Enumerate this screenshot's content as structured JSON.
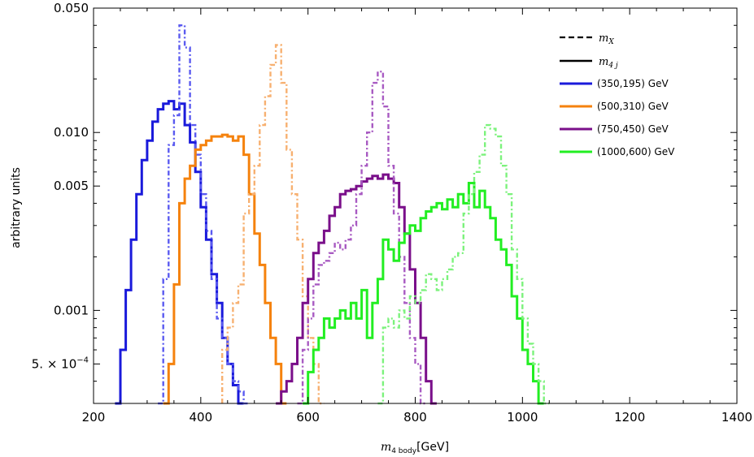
{
  "chart_data": {
    "type": "line",
    "subtype": "histogram-step",
    "xlabel_main": "m",
    "xlabel_sub": "4 body",
    "xlabel_unit": "[GeV]",
    "ylabel": "arbitrary units",
    "xlim": [
      200,
      1400
    ],
    "ylim": [
      0.0003,
      0.05
    ],
    "yscale": "log",
    "x_ticks": [
      200,
      400,
      600,
      800,
      1000,
      1200,
      1400
    ],
    "x_tick_labels": [
      "200",
      "400",
      "600",
      "800",
      "1000",
      "1200",
      "1400"
    ],
    "y_ticks": [
      0.0005,
      0.001,
      0.005,
      0.01,
      0.05
    ],
    "y_tick_labels": [
      "5. × 10",
      "0.001",
      "0.005",
      "0.010",
      "0.050"
    ],
    "y_tick_exp": "−4",
    "grid": false,
    "legend_position": "top-right",
    "legend": {
      "style_entries": [
        {
          "symbol": "m",
          "sub": "X",
          "style": "dashed"
        },
        {
          "symbol": "m",
          "sub": "4 j",
          "style": "solid"
        }
      ],
      "color_entries": [
        {
          "label": "(350,195) GeV",
          "color": "#1a1adb"
        },
        {
          "label": "(500,310) GeV",
          "color": "#f5820d"
        },
        {
          "label": "(750,450) GeV",
          "color": "#7a0f8a"
        },
        {
          "label": "(1000,600) GeV",
          "color": "#22ee22"
        }
      ]
    },
    "bin_width": 10,
    "series": [
      {
        "mass": "(350,195) GeV",
        "kind": "solid",
        "color": "#1a1adb",
        "x_start": 240,
        "values": [
          0.0003,
          0.0006,
          0.0013,
          0.0025,
          0.0045,
          0.007,
          0.009,
          0.0115,
          0.0135,
          0.0145,
          0.015,
          0.0135,
          0.0145,
          0.011,
          0.0088,
          0.006,
          0.0038,
          0.0025,
          0.0016,
          0.0011,
          0.0007,
          0.0005,
          0.00038,
          0.0003
        ]
      },
      {
        "mass": "(350,195) GeV",
        "kind": "dashed",
        "color": "#5a5af0",
        "x_start": 320,
        "values": [
          0.0003,
          0.0015,
          0.0085,
          0.0125,
          0.04,
          0.03,
          0.011,
          0.0075,
          0.0045,
          0.0028,
          0.0015,
          0.0009,
          0.0007,
          0.0005,
          0.0004,
          0.00035,
          0.0003
        ]
      },
      {
        "mass": "(500,310) GeV",
        "kind": "solid",
        "color": "#f5820d",
        "x_start": 330,
        "values": [
          0.0003,
          0.0005,
          0.0014,
          0.004,
          0.0055,
          0.0065,
          0.008,
          0.0085,
          0.009,
          0.0095,
          0.0095,
          0.0097,
          0.0095,
          0.009,
          0.0095,
          0.0075,
          0.0045,
          0.0027,
          0.0018,
          0.0011,
          0.0007,
          0.0005,
          0.0003
        ]
      },
      {
        "mass": "(500,310) GeV",
        "kind": "dashed",
        "color": "#f7b070",
        "x_start": 440,
        "values": [
          0.0006,
          0.0008,
          0.0011,
          0.0014,
          0.0035,
          0.0045,
          0.0065,
          0.011,
          0.016,
          0.024,
          0.031,
          0.019,
          0.008,
          0.0045,
          0.0025,
          0.0012,
          0.0007,
          0.0005,
          0.0003
        ]
      },
      {
        "mass": "(750,450) GeV",
        "kind": "solid",
        "color": "#7a0f8a",
        "x_start": 540,
        "values": [
          0.0003,
          0.00035,
          0.0004,
          0.0005,
          0.0007,
          0.0011,
          0.0015,
          0.0021,
          0.0024,
          0.0028,
          0.0034,
          0.0038,
          0.0045,
          0.0047,
          0.0048,
          0.005,
          0.0053,
          0.0055,
          0.0057,
          0.0055,
          0.0058,
          0.0055,
          0.0052,
          0.0038,
          0.0027,
          0.0017,
          0.0011,
          0.0007,
          0.0004,
          0.0003
        ]
      },
      {
        "mass": "(750,450) GeV",
        "kind": "dashed",
        "color": "#a85ac2",
        "x_start": 580,
        "values": [
          0.0003,
          0.0006,
          0.0009,
          0.0014,
          0.0018,
          0.0019,
          0.0021,
          0.0024,
          0.0022,
          0.0025,
          0.003,
          0.0045,
          0.0065,
          0.01,
          0.019,
          0.022,
          0.014,
          0.0065,
          0.0035,
          0.002,
          0.0011,
          0.0007,
          0.0005,
          0.0003
        ]
      },
      {
        "mass": "(1000,600) GeV",
        "kind": "solid",
        "color": "#22ee22",
        "x_start": 590,
        "values": [
          0.0003,
          0.00045,
          0.0006,
          0.0007,
          0.0009,
          0.0008,
          0.0009,
          0.001,
          0.0009,
          0.0011,
          0.0009,
          0.0013,
          0.0007,
          0.0011,
          0.0015,
          0.0025,
          0.0022,
          0.0019,
          0.0024,
          0.0027,
          0.003,
          0.0028,
          0.0033,
          0.0036,
          0.0038,
          0.004,
          0.0037,
          0.0042,
          0.0038,
          0.0045,
          0.004,
          0.0052,
          0.0038,
          0.0047,
          0.0038,
          0.0033,
          0.0025,
          0.0022,
          0.0018,
          0.0012,
          0.0009,
          0.0006,
          0.0005,
          0.0004,
          0.0003
        ]
      },
      {
        "mass": "(1000,600) GeV",
        "kind": "dashed",
        "color": "#7cf27c",
        "x_start": 730,
        "values": [
          0.0003,
          0.0008,
          0.0009,
          0.0008,
          0.001,
          0.0009,
          0.0012,
          0.0011,
          0.0013,
          0.0016,
          0.0015,
          0.0013,
          0.0015,
          0.0017,
          0.002,
          0.0021,
          0.0035,
          0.0045,
          0.006,
          0.0075,
          0.011,
          0.0105,
          0.0095,
          0.0065,
          0.0045,
          0.0022,
          0.0015,
          0.0009,
          0.00065,
          0.0005,
          0.0004,
          0.0003
        ]
      }
    ]
  }
}
